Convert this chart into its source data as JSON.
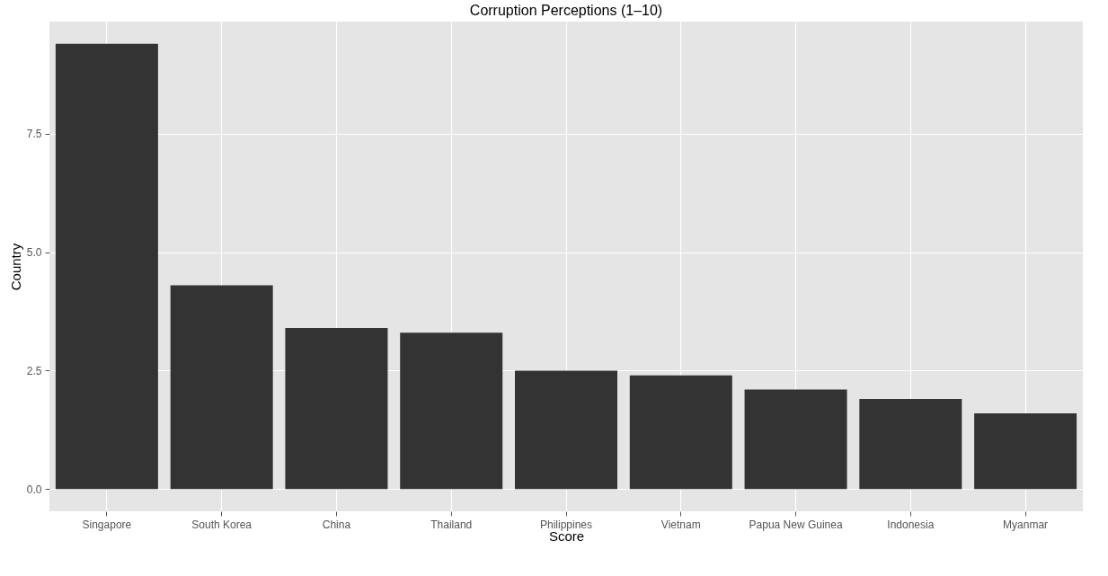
{
  "chart_data": {
    "type": "bar",
    "title": "Corruption Perceptions (1–10)",
    "xlabel": "Score",
    "ylabel": "Country",
    "categories": [
      "Singapore",
      "South Korea",
      "China",
      "Thailand",
      "Philippines",
      "Vietnam",
      "Papua New Guinea",
      "Indonesia",
      "Myanmar"
    ],
    "values": [
      9.4,
      4.3,
      3.4,
      3.3,
      2.5,
      2.4,
      2.1,
      1.9,
      1.6
    ],
    "color": "#333333",
    "ylim": [
      -0.47,
      9.87
    ],
    "yticks": [
      {
        "value": 0,
        "label": "0.0"
      },
      {
        "value": 2.5,
        "label": "2.5"
      },
      {
        "value": 5,
        "label": "5.0"
      },
      {
        "value": 7.5,
        "label": "7.5"
      }
    ],
    "grid": true
  }
}
